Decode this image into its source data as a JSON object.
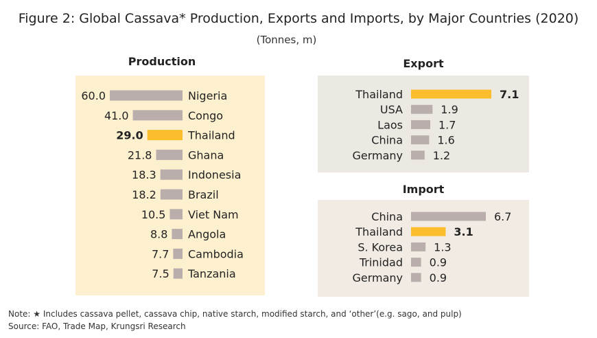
{
  "title": "Figure 2: Global Cassava* Production, Exports and Imports, by Major Countries (2020)",
  "subtitle": "(Tonnes, m)",
  "colors": {
    "highlight": "#fbbd2b",
    "bar": "#b9aeab",
    "production_bg": "#fdf0cf",
    "export_bg": "#ece8e2",
    "import_bg": "#f1ebe3"
  },
  "chart_data": [
    {
      "type": "bar",
      "orientation": "horizontal",
      "title": "Production",
      "categories": [
        "Nigeria",
        "Congo",
        "Thailand",
        "Ghana",
        "Indonesia",
        "Brazil",
        "Viet Nam",
        "Angola",
        "Cambodia",
        "Tanzania"
      ],
      "values": [
        60.0,
        41.0,
        29.0,
        21.8,
        18.3,
        18.2,
        10.5,
        8.8,
        7.7,
        7.5
      ],
      "value_labels": [
        "60.0",
        "41.0",
        "29.0",
        "21.8",
        "18.3",
        "18.2",
        "10.5",
        "8.8",
        "7.7",
        "7.5"
      ],
      "highlight": "Thailand",
      "bar_direction": "leftward"
    },
    {
      "type": "bar",
      "orientation": "horizontal",
      "title": "Export",
      "categories": [
        "Thailand",
        "USA",
        "Laos",
        "China",
        "Germany"
      ],
      "values": [
        7.1,
        1.9,
        1.7,
        1.6,
        1.2
      ],
      "value_labels": [
        "7.1",
        "1.9",
        "1.7",
        "1.6",
        "1.2"
      ],
      "highlight": "Thailand",
      "bar_direction": "rightward"
    },
    {
      "type": "bar",
      "orientation": "horizontal",
      "title": "Import",
      "categories": [
        "China",
        "Thailand",
        "S. Korea",
        "Trinidad",
        "Germany"
      ],
      "values": [
        6.7,
        3.1,
        1.3,
        0.9,
        0.9
      ],
      "value_labels": [
        "6.7",
        "3.1",
        "1.3",
        "0.9",
        "0.9"
      ],
      "highlight": "Thailand",
      "bar_direction": "rightward"
    }
  ],
  "note": "Note: ★ Includes cassava pellet, cassava chip, native starch, modified starch, and ‘other’(e.g. sago, and pulp)",
  "source": "Source: FAO, Trade Map, Krungsri Research"
}
